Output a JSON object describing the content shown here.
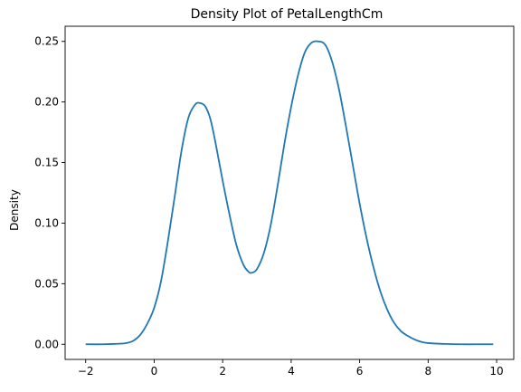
{
  "chart_data": {
    "type": "line",
    "title": "Density Plot of PetalLengthCm",
    "xlabel": "",
    "ylabel": "Density",
    "xlim": [
      -2.6,
      10.5
    ],
    "ylim": [
      -0.0125,
      0.2625
    ],
    "grid": false,
    "legend": "none",
    "x_ticks": [
      -2,
      0,
      2,
      4,
      6,
      8,
      10
    ],
    "x_tick_labels": [
      "−2",
      "0",
      "2",
      "4",
      "6",
      "8",
      "10"
    ],
    "y_ticks": [
      0.0,
      0.05,
      0.1,
      0.15,
      0.2,
      0.25
    ],
    "y_tick_labels": [
      "0.00",
      "0.05",
      "0.10",
      "0.15",
      "0.20",
      "0.25"
    ],
    "series": [
      {
        "color": "#1f77b4",
        "x": [
          -2.0,
          -1.5,
          -1.0,
          -0.8,
          -0.6,
          -0.4,
          -0.2,
          0.0,
          0.2,
          0.4,
          0.6,
          0.8,
          1.0,
          1.2,
          1.35,
          1.5,
          1.65,
          1.8,
          2.0,
          2.2,
          2.4,
          2.6,
          2.75,
          2.85,
          3.0,
          3.2,
          3.4,
          3.6,
          3.8,
          4.0,
          4.2,
          4.4,
          4.6,
          4.8,
          5.0,
          5.2,
          5.4,
          5.6,
          5.8,
          6.0,
          6.2,
          6.4,
          6.6,
          6.8,
          7.0,
          7.2,
          7.4,
          7.6,
          7.8,
          8.0,
          8.5,
          9.0,
          9.5,
          9.9
        ],
        "values": [
          0.0,
          0.0,
          0.0005,
          0.001,
          0.003,
          0.008,
          0.017,
          0.03,
          0.052,
          0.085,
          0.122,
          0.16,
          0.187,
          0.198,
          0.199,
          0.196,
          0.185,
          0.165,
          0.135,
          0.107,
          0.082,
          0.066,
          0.06,
          0.059,
          0.062,
          0.075,
          0.098,
          0.13,
          0.165,
          0.196,
          0.222,
          0.241,
          0.249,
          0.25,
          0.247,
          0.233,
          0.21,
          0.18,
          0.148,
          0.116,
          0.088,
          0.064,
          0.044,
          0.029,
          0.018,
          0.011,
          0.007,
          0.004,
          0.002,
          0.001,
          0.0003,
          0.0,
          0.0,
          0.0
        ]
      }
    ]
  }
}
